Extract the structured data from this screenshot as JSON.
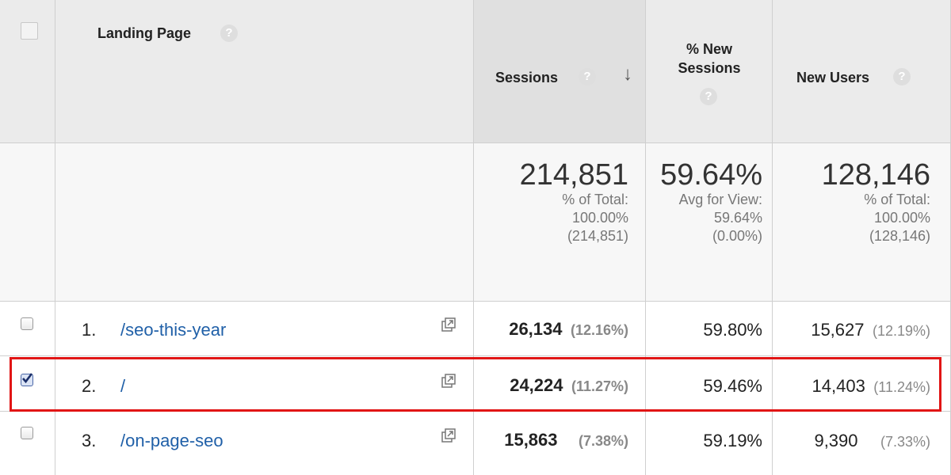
{
  "header": {
    "landing_page": "Landing Page",
    "sessions": "Sessions",
    "new_sessions_line1": "% New",
    "new_sessions_line2": "Sessions",
    "new_users": "New Users",
    "help_glyph": "?"
  },
  "totals": {
    "sessions": {
      "value": "214,851",
      "line1": "% of Total:",
      "line2": "100.00%",
      "line3": "(214,851)"
    },
    "new_sessions": {
      "value": "59.64%",
      "line1": "Avg for View:",
      "line2": "59.64%",
      "line3": "(0.00%)"
    },
    "new_users": {
      "value": "128,146",
      "line1": "% of Total:",
      "line2": "100.00%",
      "line3": "(128,146)"
    }
  },
  "rows": [
    {
      "index": "1.",
      "page": "/seo-this-year",
      "sessions": "26,134",
      "sessions_pct": "(12.16%)",
      "new_sessions": "59.80%",
      "new_users": "15,627",
      "new_users_pct": "(12.19%)",
      "checked": false
    },
    {
      "index": "2.",
      "page": "/",
      "sessions": "24,224",
      "sessions_pct": "(11.27%)",
      "new_sessions": "59.46%",
      "new_users": "14,403",
      "new_users_pct": "(11.24%)",
      "checked": true
    },
    {
      "index": "3.",
      "page": "/on-page-seo",
      "sessions": "15,863",
      "sessions_pct": "(7.38%)",
      "new_sessions": "59.19%",
      "new_users": "9,390",
      "new_users_pct": "(7.33%)",
      "checked": false
    }
  ],
  "colors": {
    "link": "#2060a8",
    "highlight": "#e11515",
    "header_bg": "#ebebeb"
  }
}
